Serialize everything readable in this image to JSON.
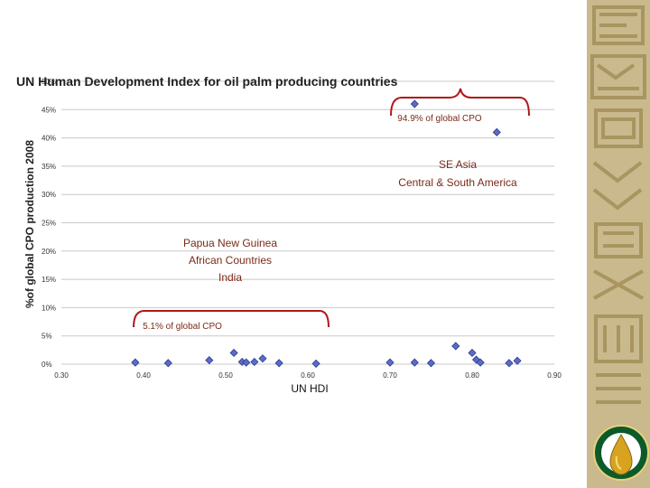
{
  "chart_data": {
    "type": "scatter",
    "title": "UN Human Development Index for oil palm producing  countries",
    "xlabel": "UN HDI",
    "ylabel": "%of global CPO production 2008",
    "xlim": [
      0.3,
      0.9
    ],
    "ylim": [
      0,
      50
    ],
    "x_ticks": [
      "0.30",
      "0.40",
      "0.50",
      "0.60",
      "0.70",
      "0.80",
      "0.90"
    ],
    "y_ticks": [
      "0%",
      "5%",
      "10%",
      "15%",
      "20%",
      "25%",
      "30%",
      "35%",
      "40%",
      "45%",
      "50%"
    ],
    "grid": true,
    "points": [
      {
        "x": 0.39,
        "y": 0.3
      },
      {
        "x": 0.43,
        "y": 0.2
      },
      {
        "x": 0.48,
        "y": 0.7
      },
      {
        "x": 0.51,
        "y": 2.0
      },
      {
        "x": 0.52,
        "y": 0.4
      },
      {
        "x": 0.525,
        "y": 0.3
      },
      {
        "x": 0.535,
        "y": 0.4
      },
      {
        "x": 0.545,
        "y": 1.0
      },
      {
        "x": 0.565,
        "y": 0.2
      },
      {
        "x": 0.61,
        "y": 0.1
      },
      {
        "x": 0.7,
        "y": 0.3
      },
      {
        "x": 0.73,
        "y": 46.0
      },
      {
        "x": 0.73,
        "y": 0.3
      },
      {
        "x": 0.75,
        "y": 0.2
      },
      {
        "x": 0.78,
        "y": 3.2
      },
      {
        "x": 0.8,
        "y": 2.0
      },
      {
        "x": 0.805,
        "y": 0.8
      },
      {
        "x": 0.81,
        "y": 0.3
      },
      {
        "x": 0.83,
        "y": 41.0
      },
      {
        "x": 0.845,
        "y": 0.2
      },
      {
        "x": 0.855,
        "y": 0.6
      }
    ],
    "annotations": {
      "upper_share": "94.9% of global CPO",
      "upper_regions": [
        "SE Asia",
        "Central & South America"
      ],
      "lower_share": "5.1% of global CPO",
      "lower_regions": [
        "Papua New Guinea",
        "African Countries",
        "India"
      ]
    },
    "colors": {
      "marker_fill": "#5b6bc8",
      "marker_stroke": "#2b3a8a",
      "bracket": "#b01818",
      "annotation_text": "#7a2a18",
      "gridline": "#c8c8c8"
    }
  }
}
